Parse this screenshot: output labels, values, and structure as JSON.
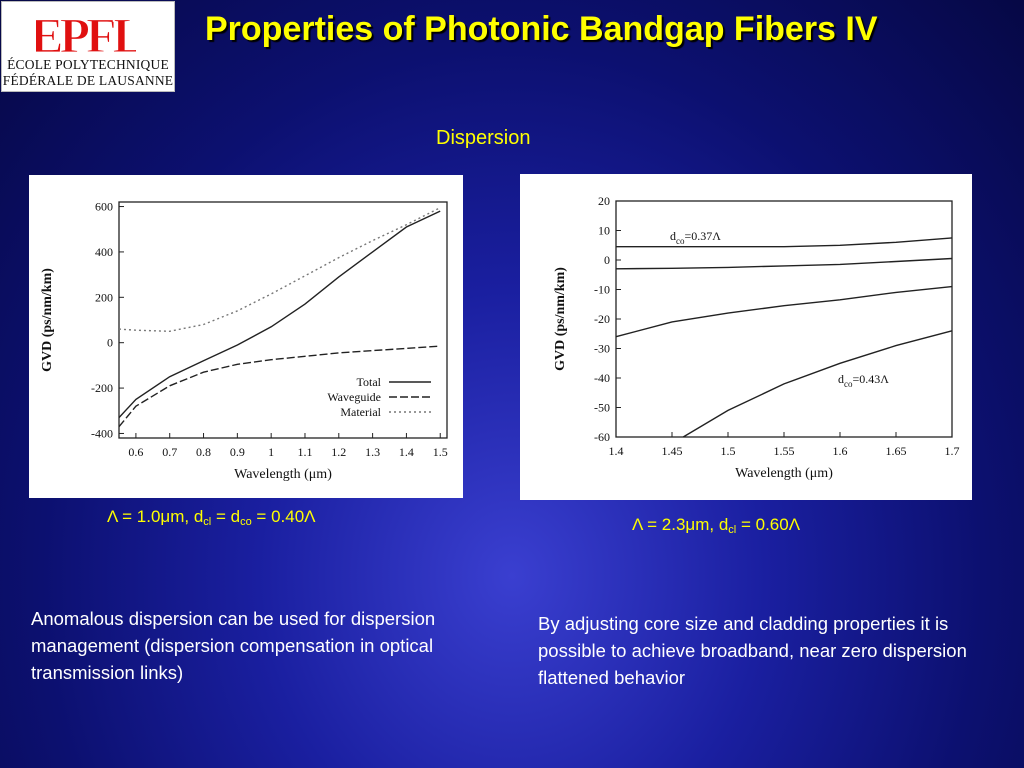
{
  "logo": {
    "mark": "EPFL",
    "line1": "ÉCOLE POLYTECHNIQUE",
    "line2": "FÉDÉRALE DE LAUSANNE"
  },
  "title": "Properties of Photonic Bandgap Fibers IV",
  "subtitle": "Dispersion",
  "captions": {
    "left": {
      "prefix": "Λ = 1.0μm, d",
      "sub1": "cl",
      "mid": " = d",
      "sub2": "co",
      "suffix": " = 0.40Λ"
    },
    "right": {
      "prefix": "Λ = 2.3μm, d",
      "sub1": "cl",
      "suffix": " = 0.60Λ"
    }
  },
  "text": {
    "left": "Anomalous dispersion can be used for dispersion management (dispersion compensation in optical transmission links)",
    "right": "By adjusting core size and cladding properties it is possible to achieve broadband, near zero dispersion flattened behavior"
  },
  "colors": {
    "title": "#ffff00",
    "body_text": "#ffffff",
    "background": "#1a1fa0"
  },
  "chart_data": [
    {
      "type": "line",
      "xlabel": "Wavelength (μm)",
      "ylabel": "GVD (ps/nm/km)",
      "xlim": [
        0.55,
        1.52
      ],
      "ylim": [
        -420,
        620
      ],
      "xticks": [
        "0.6",
        "0.7",
        "0.8",
        "0.9",
        "1",
        "1.1",
        "1.2",
        "1.3",
        "1.4",
        "1.5"
      ],
      "yticks": [
        "600",
        "400",
        "200",
        "0",
        "-200",
        "-400"
      ],
      "legend": "bottom-right",
      "series": [
        {
          "name": "Total",
          "style": "solid",
          "x": [
            0.55,
            0.6,
            0.7,
            0.8,
            0.9,
            1.0,
            1.1,
            1.2,
            1.3,
            1.4,
            1.5
          ],
          "y": [
            -330,
            -250,
            -150,
            -80,
            -10,
            70,
            170,
            290,
            400,
            510,
            580
          ]
        },
        {
          "name": "Waveguide",
          "style": "dashed",
          "x": [
            0.55,
            0.6,
            0.7,
            0.8,
            0.9,
            1.0,
            1.1,
            1.2,
            1.3,
            1.4,
            1.5
          ],
          "y": [
            -370,
            -280,
            -190,
            -130,
            -95,
            -75,
            -60,
            -45,
            -35,
            -25,
            -15
          ]
        },
        {
          "name": "Material",
          "style": "dotted",
          "x": [
            0.55,
            0.6,
            0.7,
            0.8,
            0.9,
            1.0,
            1.1,
            1.2,
            1.3,
            1.4,
            1.5
          ],
          "y": [
            60,
            55,
            50,
            80,
            140,
            215,
            295,
            375,
            450,
            520,
            595
          ]
        }
      ]
    },
    {
      "type": "line",
      "xlabel": "Wavelength (μm)",
      "ylabel": "GVD (ps/nm/km)",
      "xlim": [
        1.4,
        1.7
      ],
      "ylim": [
        -60,
        20
      ],
      "xticks": [
        "1.4",
        "1.45",
        "1.5",
        "1.55",
        "1.6",
        "1.65",
        "1.7"
      ],
      "yticks": [
        "20",
        "10",
        "0",
        "-10",
        "-20",
        "-30",
        "-40",
        "-50",
        "-60"
      ],
      "annotations": [
        {
          "base": "d",
          "sub": "co",
          "text": "=0.37Λ"
        },
        {
          "base": "d",
          "sub": "co",
          "text": "=0.43Λ"
        }
      ],
      "series": [
        {
          "x": [
            1.4,
            1.45,
            1.5,
            1.55,
            1.6,
            1.65,
            1.7
          ],
          "y": [
            4.5,
            4.5,
            4.5,
            4.5,
            5,
            6,
            7.5
          ]
        },
        {
          "x": [
            1.4,
            1.45,
            1.5,
            1.55,
            1.6,
            1.65,
            1.7
          ],
          "y": [
            -3,
            -2.8,
            -2.5,
            -2,
            -1.5,
            -0.5,
            0.5
          ]
        },
        {
          "x": [
            1.4,
            1.45,
            1.5,
            1.55,
            1.6,
            1.65,
            1.7
          ],
          "y": [
            -26,
            -21,
            -18,
            -15.5,
            -13.5,
            -11,
            -9
          ]
        },
        {
          "x": [
            1.46,
            1.5,
            1.55,
            1.6,
            1.65,
            1.7
          ],
          "y": [
            -60,
            -51,
            -42,
            -35,
            -29,
            -24
          ]
        }
      ]
    }
  ]
}
